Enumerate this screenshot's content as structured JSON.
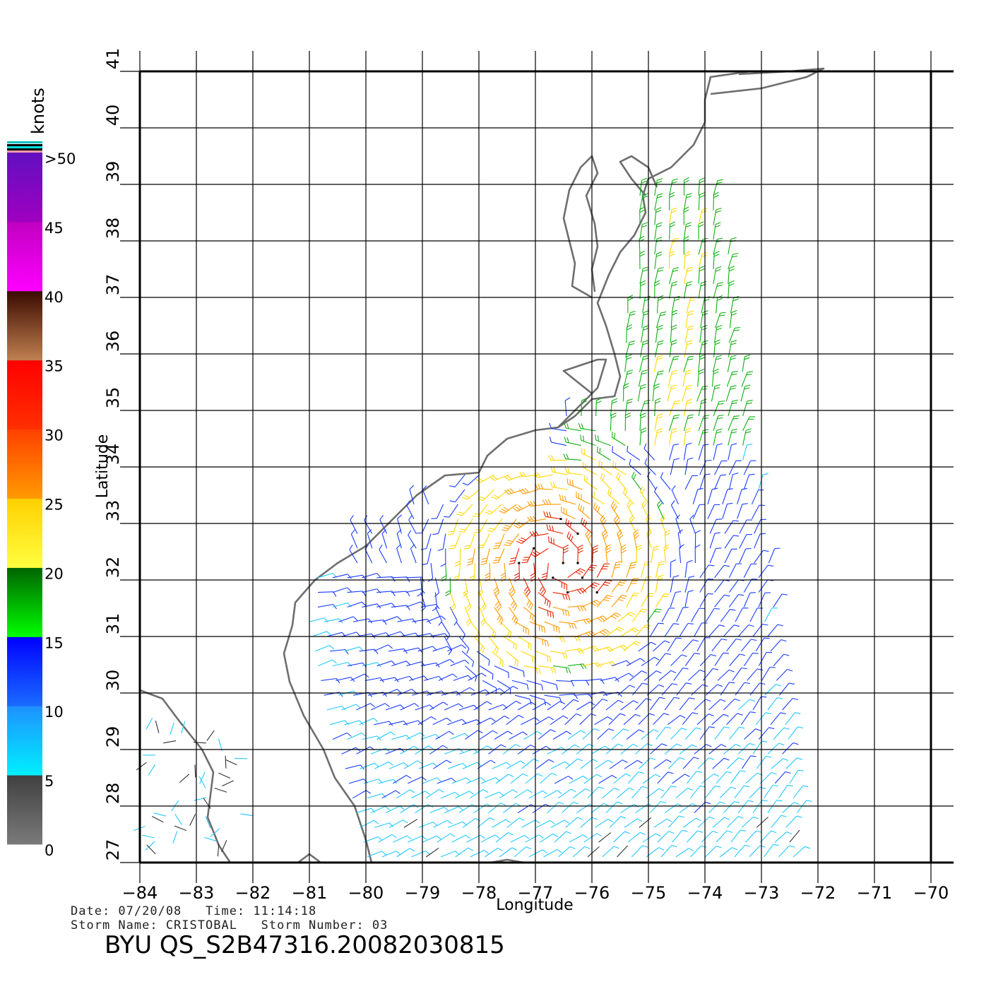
{
  "legend": {
    "unit": "knots",
    "labels": [
      ">50",
      "45",
      "40",
      "35",
      "30",
      "25",
      "20",
      "15",
      "10",
      "5",
      "0"
    ],
    "bands": [
      {
        "min": 0,
        "max": 5,
        "top": "#404040",
        "bottom": "#7a7a7a"
      },
      {
        "min": 5,
        "max": 10,
        "top": "#1e90ff",
        "bottom": "#00f0ff"
      },
      {
        "min": 10,
        "max": 15,
        "top": "#0000ff",
        "bottom": "#1a6cff"
      },
      {
        "min": 15,
        "max": 20,
        "top": "#006400",
        "bottom": "#00ff00"
      },
      {
        "min": 20,
        "max": 25,
        "top": "#ffd000",
        "bottom": "#ffff40"
      },
      {
        "min": 25,
        "max": 30,
        "top": "#ff4000",
        "bottom": "#ff9a00"
      },
      {
        "min": 30,
        "max": 35,
        "top": "#ff0000",
        "bottom": "#ff3000"
      },
      {
        "min": 35,
        "max": 40,
        "top": "#3a0a00",
        "bottom": "#c08050"
      },
      {
        "min": 40,
        "max": 45,
        "top": "#c000c0",
        "bottom": "#ff00ff"
      },
      {
        "min": 45,
        "max": 50,
        "top": "#6010c0",
        "bottom": "#a000c0"
      }
    ]
  },
  "axes": {
    "xlabel": "Longitude",
    "ylabel": "Latitude",
    "lon_range": [
      -84,
      -70
    ],
    "lat_range": [
      27,
      41
    ],
    "lon_ticks": [
      "-84",
      "-83",
      "-82",
      "-81",
      "-80",
      "-79",
      "-78",
      "-77",
      "-76",
      "-75",
      "-74",
      "-73",
      "-72",
      "-71",
      "-70"
    ],
    "lat_ticks": [
      "27",
      "28",
      "29",
      "30",
      "31",
      "32",
      "33",
      "34",
      "35",
      "36",
      "37",
      "38",
      "39",
      "40",
      "41"
    ]
  },
  "info": {
    "date_line": "Date: 07/20/08   Time: 11:14:18",
    "storm_line": "Storm Name: CRISTOBAL   Storm Number: 03",
    "product_title": "BYU QS_S2B47316.20082030815"
  },
  "colors": {
    "coastline": "#6e6e6e",
    "grid": "#000000"
  }
}
